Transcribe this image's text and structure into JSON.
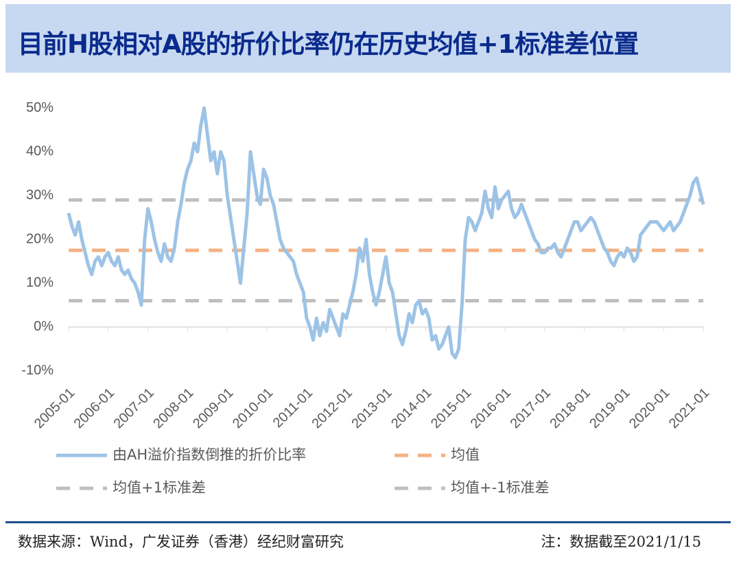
{
  "title": "目前H股相对A股的折价比率仍在历史均值+1标准差位置",
  "source": "数据来源：Wind，广发证券（香港）经纪财富研究",
  "note": "注：数据截至2021/1/15",
  "chart_data": {
    "type": "line",
    "x": [
      "2005-01",
      "2005-02",
      "2005-03",
      "2005-04",
      "2005-05",
      "2005-06",
      "2005-07",
      "2005-08",
      "2005-09",
      "2005-10",
      "2005-11",
      "2005-12",
      "2006-01",
      "2006-02",
      "2006-03",
      "2006-04",
      "2006-05",
      "2006-06",
      "2006-07",
      "2006-08",
      "2006-09",
      "2006-10",
      "2006-11",
      "2006-12",
      "2007-01",
      "2007-02",
      "2007-03",
      "2007-04",
      "2007-05",
      "2007-06",
      "2007-07",
      "2007-08",
      "2007-09",
      "2007-10",
      "2007-11",
      "2007-12",
      "2008-01",
      "2008-02",
      "2008-03",
      "2008-04",
      "2008-05",
      "2008-06",
      "2008-07",
      "2008-08",
      "2008-09",
      "2008-10",
      "2008-11",
      "2008-12",
      "2009-01",
      "2009-02",
      "2009-03",
      "2009-04",
      "2009-05",
      "2009-06",
      "2009-07",
      "2009-08",
      "2009-09",
      "2009-10",
      "2009-11",
      "2009-12",
      "2010-01",
      "2010-02",
      "2010-03",
      "2010-04",
      "2010-05",
      "2010-06",
      "2010-07",
      "2010-08",
      "2010-09",
      "2010-10",
      "2010-11",
      "2010-12",
      "2011-01",
      "2011-02",
      "2011-03",
      "2011-04",
      "2011-05",
      "2011-06",
      "2011-07",
      "2011-08",
      "2011-09",
      "2011-10",
      "2011-11",
      "2011-12",
      "2012-01",
      "2012-02",
      "2012-03",
      "2012-04",
      "2012-05",
      "2012-06",
      "2012-07",
      "2012-08",
      "2012-09",
      "2012-10",
      "2012-11",
      "2012-12",
      "2013-01",
      "2013-02",
      "2013-03",
      "2013-04",
      "2013-05",
      "2013-06",
      "2013-07",
      "2013-08",
      "2013-09",
      "2013-10",
      "2013-11",
      "2013-12",
      "2014-01",
      "2014-02",
      "2014-03",
      "2014-04",
      "2014-05",
      "2014-06",
      "2014-07",
      "2014-08",
      "2014-09",
      "2014-10",
      "2014-11",
      "2014-12",
      "2015-01",
      "2015-02",
      "2015-03",
      "2015-04",
      "2015-05",
      "2015-06",
      "2015-07",
      "2015-08",
      "2015-09",
      "2015-10",
      "2015-11",
      "2015-12",
      "2016-01",
      "2016-02",
      "2016-03",
      "2016-04",
      "2016-05",
      "2016-06",
      "2016-07",
      "2016-08",
      "2016-09",
      "2016-10",
      "2016-11",
      "2016-12",
      "2017-01",
      "2017-02",
      "2017-03",
      "2017-04",
      "2017-05",
      "2017-06",
      "2017-07",
      "2017-08",
      "2017-09",
      "2017-10",
      "2017-11",
      "2017-12",
      "2018-01",
      "2018-02",
      "2018-03",
      "2018-04",
      "2018-05",
      "2018-06",
      "2018-07",
      "2018-08",
      "2018-09",
      "2018-10",
      "2018-11",
      "2018-12",
      "2019-01",
      "2019-02",
      "2019-03",
      "2019-04",
      "2019-05",
      "2019-06",
      "2019-07",
      "2019-08",
      "2019-09",
      "2019-10",
      "2019-11",
      "2019-12",
      "2020-01",
      "2020-02",
      "2020-03",
      "2020-04",
      "2020-05",
      "2020-06",
      "2020-07",
      "2020-08",
      "2020-09",
      "2020-10",
      "2020-11",
      "2020-12",
      "2021-01"
    ],
    "series": [
      {
        "name": "由AH溢价指数倒推的折价比率",
        "color": "#9dc3e6",
        "values": [
          26,
          23,
          21,
          24,
          20,
          17,
          14,
          12,
          15,
          16,
          14,
          16,
          17,
          15,
          14,
          16,
          13,
          12,
          13,
          11,
          10,
          8,
          5,
          20,
          27,
          24,
          20,
          17,
          15,
          19,
          16,
          15,
          18,
          24,
          28,
          33,
          36,
          38,
          42,
          40,
          46,
          50,
          44,
          38,
          40,
          35,
          40,
          38,
          30,
          25,
          20,
          15,
          10,
          18,
          26,
          40,
          35,
          30,
          28,
          36,
          34,
          30,
          28,
          24,
          20,
          18,
          17,
          16,
          15,
          12,
          10,
          8,
          2,
          0,
          -3,
          2,
          -2,
          1,
          -1,
          4,
          2,
          0,
          -2,
          3,
          2,
          5,
          8,
          12,
          18,
          15,
          20,
          12,
          8,
          5,
          8,
          12,
          16,
          10,
          8,
          3,
          -2,
          -4,
          -1,
          3,
          1,
          5,
          6,
          3,
          4,
          2,
          -3,
          -2,
          -5,
          -4,
          -2,
          0,
          -6,
          -7,
          -5,
          5,
          20,
          25,
          24,
          22,
          24,
          26,
          31,
          27,
          25,
          32,
          27,
          29,
          30,
          31,
          27,
          25,
          26,
          28,
          26,
          24,
          22,
          20,
          19,
          17,
          17,
          18,
          18,
          19,
          17,
          16,
          18,
          20,
          22,
          24,
          24,
          22,
          23,
          24,
          25,
          24,
          22,
          20,
          18,
          17,
          15,
          14,
          16,
          17,
          16,
          18,
          17,
          15,
          16,
          21,
          22,
          23,
          24,
          24,
          24,
          23,
          22,
          23,
          24,
          22,
          23,
          24,
          26,
          28,
          30,
          33,
          34,
          31,
          28
        ]
      }
    ],
    "reference_lines": [
      {
        "name": "均值",
        "color": "#f4b183",
        "value": 17.5
      },
      {
        "name": "均值+1标准差",
        "color": "#bfbfbf",
        "value": 29
      },
      {
        "name": "均值+-1标准差",
        "color": "#bfbfbf",
        "value": 6
      }
    ],
    "xticks": [
      "2005-01",
      "2006-01",
      "2007-01",
      "2008-01",
      "2009-01",
      "2010-01",
      "2011-01",
      "2012-01",
      "2013-01",
      "2014-01",
      "2015-01",
      "2016-01",
      "2017-01",
      "2018-01",
      "2019-01",
      "2020-01",
      "2021-01"
    ],
    "ylim": [
      -11,
      54
    ],
    "yticks": [
      {
        "value": -10,
        "label": "-10%"
      },
      {
        "value": 0,
        "label": "0%"
      },
      {
        "value": 10,
        "label": "10%"
      },
      {
        "value": 20,
        "label": "20%"
      },
      {
        "value": 30,
        "label": "30%"
      },
      {
        "value": 40,
        "label": "40%"
      },
      {
        "value": 50,
        "label": "50%"
      }
    ],
    "legend": "bottom"
  }
}
